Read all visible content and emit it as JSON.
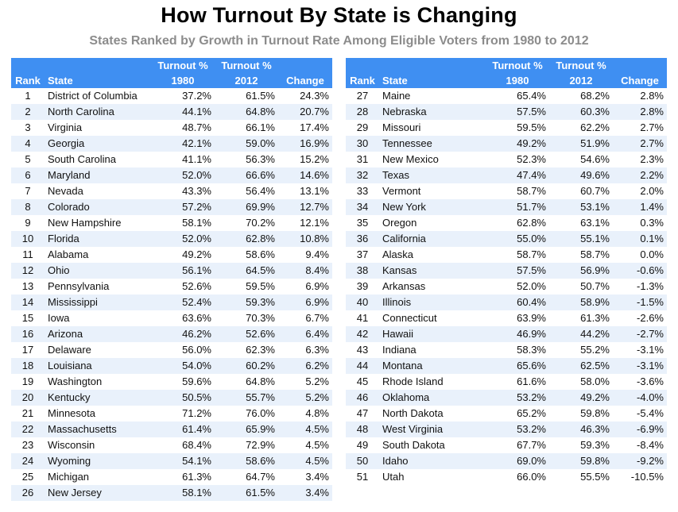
{
  "header": {
    "title": "How Turnout By State is Changing",
    "subtitle": "States Ranked by Growth in Turnout Rate Among Eligible Voters from 1980 to 2012"
  },
  "columns": {
    "rank": "Rank",
    "state": "State",
    "turnout1980_top": "Turnout %",
    "turnout1980_bottom": "1980",
    "turnout2012_top": "Turnout %",
    "turnout2012_bottom": "2012",
    "change": "Change"
  },
  "colors": {
    "header_bg": "#3f8ff2",
    "stripe": "#e9f1fb"
  },
  "rows_left": [
    [
      "1",
      "District of Columbia",
      "37.2%",
      "61.5%",
      "24.3%"
    ],
    [
      "2",
      "North Carolina",
      "44.1%",
      "64.8%",
      "20.7%"
    ],
    [
      "3",
      "Virginia",
      "48.7%",
      "66.1%",
      "17.4%"
    ],
    [
      "4",
      "Georgia",
      "42.1%",
      "59.0%",
      "16.9%"
    ],
    [
      "5",
      "South Carolina",
      "41.1%",
      "56.3%",
      "15.2%"
    ],
    [
      "6",
      "Maryland",
      "52.0%",
      "66.6%",
      "14.6%"
    ],
    [
      "7",
      "Nevada",
      "43.3%",
      "56.4%",
      "13.1%"
    ],
    [
      "8",
      "Colorado",
      "57.2%",
      "69.9%",
      "12.7%"
    ],
    [
      "9",
      "New Hampshire",
      "58.1%",
      "70.2%",
      "12.1%"
    ],
    [
      "10",
      "Florida",
      "52.0%",
      "62.8%",
      "10.8%"
    ],
    [
      "11",
      "Alabama",
      "49.2%",
      "58.6%",
      "9.4%"
    ],
    [
      "12",
      "Ohio",
      "56.1%",
      "64.5%",
      "8.4%"
    ],
    [
      "13",
      "Pennsylvania",
      "52.6%",
      "59.5%",
      "6.9%"
    ],
    [
      "14",
      "Mississippi",
      "52.4%",
      "59.3%",
      "6.9%"
    ],
    [
      "15",
      "Iowa",
      "63.6%",
      "70.3%",
      "6.7%"
    ],
    [
      "16",
      "Arizona",
      "46.2%",
      "52.6%",
      "6.4%"
    ],
    [
      "17",
      "Delaware",
      "56.0%",
      "62.3%",
      "6.3%"
    ],
    [
      "18",
      "Louisiana",
      "54.0%",
      "60.2%",
      "6.2%"
    ],
    [
      "19",
      "Washington",
      "59.6%",
      "64.8%",
      "5.2%"
    ],
    [
      "20",
      "Kentucky",
      "50.5%",
      "55.7%",
      "5.2%"
    ],
    [
      "21",
      "Minnesota",
      "71.2%",
      "76.0%",
      "4.8%"
    ],
    [
      "22",
      "Massachusetts",
      "61.4%",
      "65.9%",
      "4.5%"
    ],
    [
      "23",
      "Wisconsin",
      "68.4%",
      "72.9%",
      "4.5%"
    ],
    [
      "24",
      "Wyoming",
      "54.1%",
      "58.6%",
      "4.5%"
    ],
    [
      "25",
      "Michigan",
      "61.3%",
      "64.7%",
      "3.4%"
    ],
    [
      "26",
      "New Jersey",
      "58.1%",
      "61.5%",
      "3.4%"
    ]
  ],
  "rows_right": [
    [
      "27",
      "Maine",
      "65.4%",
      "68.2%",
      "2.8%"
    ],
    [
      "28",
      "Nebraska",
      "57.5%",
      "60.3%",
      "2.8%"
    ],
    [
      "29",
      "Missouri",
      "59.5%",
      "62.2%",
      "2.7%"
    ],
    [
      "30",
      "Tennessee",
      "49.2%",
      "51.9%",
      "2.7%"
    ],
    [
      "31",
      "New Mexico",
      "52.3%",
      "54.6%",
      "2.3%"
    ],
    [
      "32",
      "Texas",
      "47.4%",
      "49.6%",
      "2.2%"
    ],
    [
      "33",
      "Vermont",
      "58.7%",
      "60.7%",
      "2.0%"
    ],
    [
      "34",
      "New York",
      "51.7%",
      "53.1%",
      "1.4%"
    ],
    [
      "35",
      "Oregon",
      "62.8%",
      "63.1%",
      "0.3%"
    ],
    [
      "36",
      "California",
      "55.0%",
      "55.1%",
      "0.1%"
    ],
    [
      "37",
      "Alaska",
      "58.7%",
      "58.7%",
      "0.0%"
    ],
    [
      "38",
      "Kansas",
      "57.5%",
      "56.9%",
      "-0.6%"
    ],
    [
      "39",
      "Arkansas",
      "52.0%",
      "50.7%",
      "-1.3%"
    ],
    [
      "40",
      "Illinois",
      "60.4%",
      "58.9%",
      "-1.5%"
    ],
    [
      "41",
      "Connecticut",
      "63.9%",
      "61.3%",
      "-2.6%"
    ],
    [
      "42",
      "Hawaii",
      "46.9%",
      "44.2%",
      "-2.7%"
    ],
    [
      "43",
      "Indiana",
      "58.3%",
      "55.2%",
      "-3.1%"
    ],
    [
      "44",
      "Montana",
      "65.6%",
      "62.5%",
      "-3.1%"
    ],
    [
      "45",
      "Rhode Island",
      "61.6%",
      "58.0%",
      "-3.6%"
    ],
    [
      "46",
      "Oklahoma",
      "53.2%",
      "49.2%",
      "-4.0%"
    ],
    [
      "47",
      "North Dakota",
      "65.2%",
      "59.8%",
      "-5.4%"
    ],
    [
      "48",
      "West Virginia",
      "53.2%",
      "46.3%",
      "-6.9%"
    ],
    [
      "49",
      "South Dakota",
      "67.7%",
      "59.3%",
      "-8.4%"
    ],
    [
      "50",
      "Idaho",
      "69.0%",
      "59.8%",
      "-9.2%"
    ],
    [
      "51",
      "Utah",
      "66.0%",
      "55.5%",
      "-10.5%"
    ]
  ]
}
